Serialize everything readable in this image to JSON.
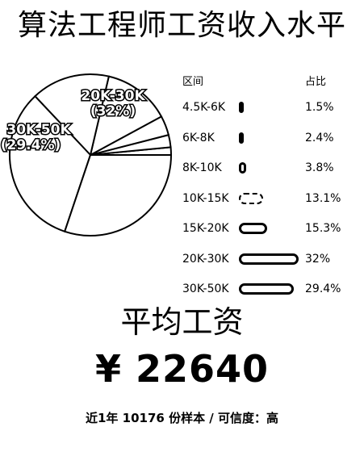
{
  "title": "算法工程师工资收入水平",
  "table_header": {
    "range": "区间",
    "pct": "占比"
  },
  "chart_data": {
    "type": "pie",
    "title": "算法工程师工资收入水平",
    "categories": [
      "4.5K-6K",
      "6K-8K",
      "8K-10K",
      "10K-15K",
      "15K-20K",
      "20K-30K",
      "30K-50K"
    ],
    "values": [
      1.5,
      2.4,
      3.8,
      13.1,
      15.3,
      32,
      29.4
    ],
    "value_labels": [
      "1.5%",
      "2.4%",
      "3.8%",
      "13.1%",
      "15.3%",
      "32%",
      "29.4%"
    ],
    "pie_labels": [
      {
        "category": "20K-30K",
        "text": "20K-30K",
        "pct": "(32%)"
      },
      {
        "category": "30K-50K",
        "text": "30K-50K",
        "pct": "(29.4%)"
      }
    ],
    "colors": {
      "fill": "#ffffff",
      "stroke": "#000000"
    }
  },
  "average": {
    "label": "平均工资",
    "value": "¥ 22640"
  },
  "footer": "近1年 10176 份样本 / 可信度：高"
}
